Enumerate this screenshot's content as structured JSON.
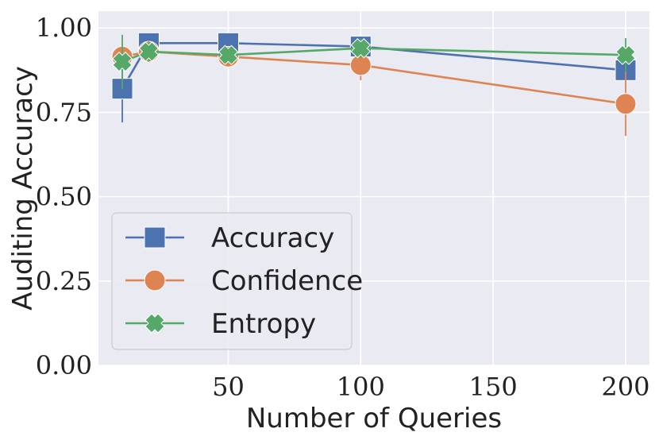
{
  "chart_data": {
    "type": "line",
    "title": "",
    "xlabel": "Number of Queries",
    "ylabel": "Auditing Accuracy",
    "xlim": [
      1,
      209
    ],
    "ylim": [
      0,
      1.05
    ],
    "x_ticks": [
      50,
      100,
      150,
      200
    ],
    "x_tick_labels": [
      "50",
      "100",
      "150",
      "200"
    ],
    "y_ticks": [
      0,
      0.25,
      0.5,
      0.75,
      1.0
    ],
    "y_tick_labels": [
      "0.00",
      "0.25",
      "0.50",
      "0.75",
      "1.00"
    ],
    "grid": true,
    "legend_position": "lower-left",
    "x": [
      10,
      20,
      50,
      100,
      200
    ],
    "series": [
      {
        "name": "Accuracy",
        "marker": "square",
        "color": "#4c72b0",
        "values": [
          0.82,
          0.955,
          0.955,
          0.945,
          0.875
        ],
        "error": [
          0.1,
          0.01,
          0.01,
          0.02,
          0.02
        ]
      },
      {
        "name": "Confidence",
        "marker": "circle",
        "color": "#dd8452",
        "values": [
          0.915,
          0.93,
          0.915,
          0.89,
          0.775
        ],
        "error": [
          0.03,
          0.02,
          0.02,
          0.045,
          0.095
        ]
      },
      {
        "name": "Entropy",
        "marker": "x",
        "color": "#55a868",
        "values": [
          0.9,
          0.93,
          0.92,
          0.94,
          0.92
        ],
        "error": [
          0.08,
          0.03,
          0.02,
          0.03,
          0.05
        ]
      }
    ]
  }
}
